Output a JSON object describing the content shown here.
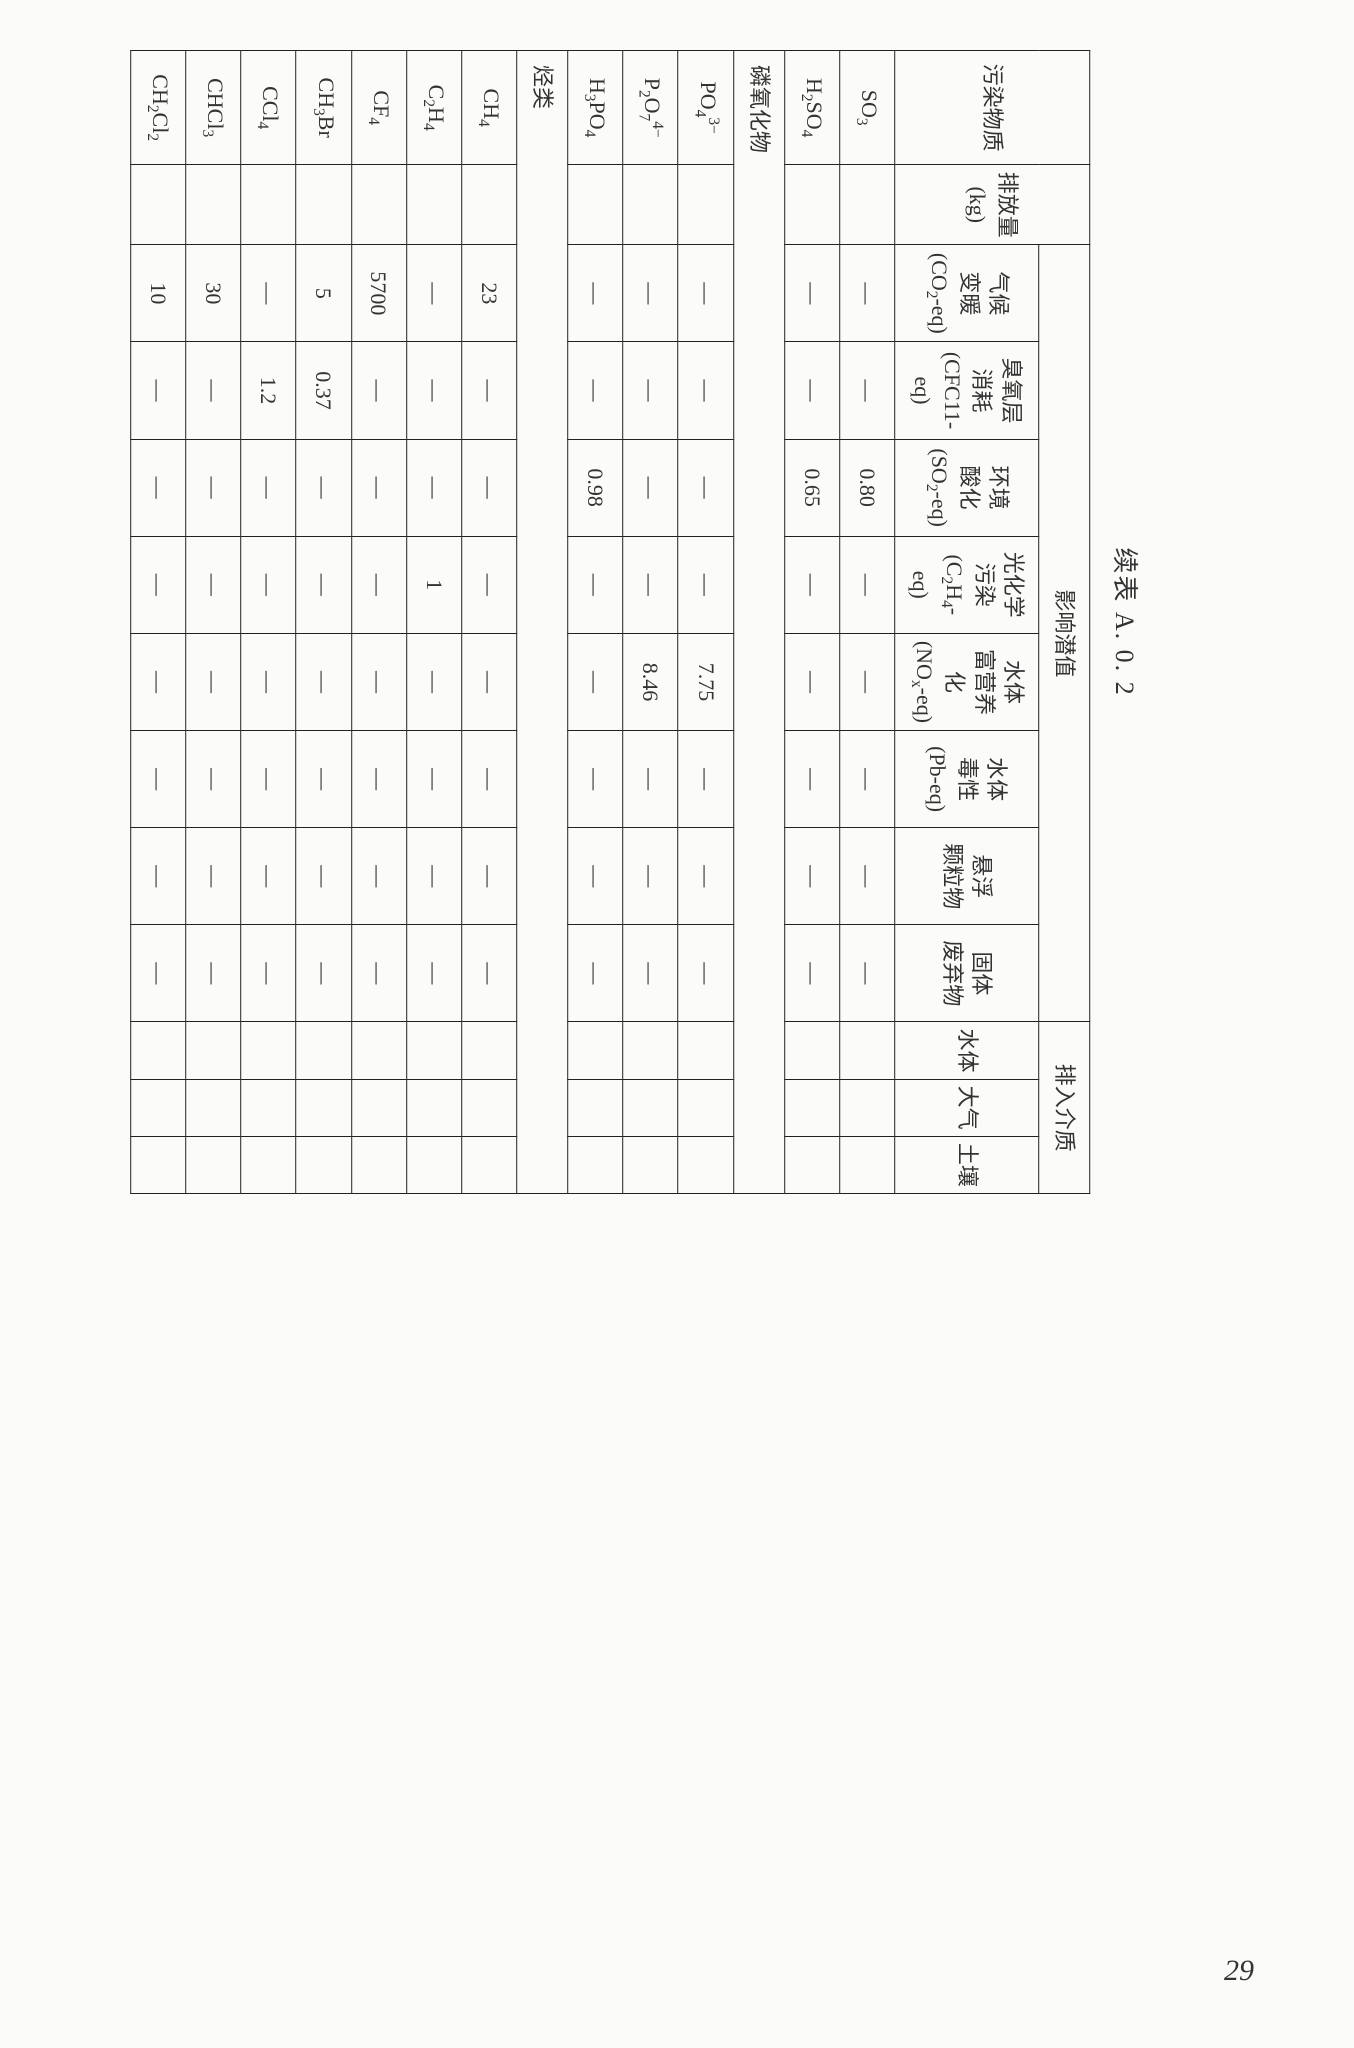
{
  "title": "续表 A. 0. 2",
  "page_number": "29",
  "headers": {
    "pollutant": "污染物质",
    "emission": "排放量",
    "emission_unit": "(kg)",
    "impact_group": "影响潜值",
    "media_group": "排入介质",
    "impact": [
      "气候\n变暖\n(CO₂-eq)",
      "臭氧层\n消耗\n(CFC11-eq)",
      "环境\n酸化\n(SO₂-eq)",
      "光化学\n污染\n(C₂H₄-eq)",
      "水体\n富营养化\n(NOₓ-eq)",
      "水体\n毒性\n(Pb-eq)",
      "悬浮\n颗粒物",
      "固体\n废弃物"
    ],
    "media": [
      "水体",
      "大气",
      "土壤"
    ]
  },
  "sections": [
    {
      "rows": [
        {
          "name": "SO₃",
          "emission": "",
          "cells": [
            "—",
            "—",
            "0.80",
            "—",
            "—",
            "—",
            "—",
            "—"
          ],
          "media": [
            "",
            "",
            ""
          ]
        },
        {
          "name": "H₂SO₄",
          "emission": "",
          "cells": [
            "—",
            "—",
            "0.65",
            "—",
            "—",
            "—",
            "—",
            "—"
          ],
          "media": [
            "",
            "",
            ""
          ]
        }
      ]
    },
    {
      "heading": "磷氧化物",
      "rows": [
        {
          "name": "PO₄³⁻",
          "emission": "",
          "cells": [
            "—",
            "—",
            "—",
            "—",
            "7.75",
            "—",
            "—",
            "—"
          ],
          "media": [
            "",
            "",
            ""
          ]
        },
        {
          "name": "P₂O₇⁴⁻",
          "emission": "",
          "cells": [
            "—",
            "—",
            "—",
            "—",
            "8.46",
            "—",
            "—",
            "—"
          ],
          "media": [
            "",
            "",
            ""
          ]
        },
        {
          "name": "H₃PO₄",
          "emission": "",
          "cells": [
            "—",
            "—",
            "0.98",
            "—",
            "—",
            "—",
            "—",
            "—"
          ],
          "media": [
            "",
            "",
            ""
          ]
        }
      ]
    },
    {
      "heading": "烃类",
      "rows": [
        {
          "name": "CH₄",
          "emission": "",
          "cells": [
            "23",
            "—",
            "—",
            "—",
            "—",
            "—",
            "—",
            "—"
          ],
          "media": [
            "",
            "",
            ""
          ]
        },
        {
          "name": "C₂H₄",
          "emission": "",
          "cells": [
            "—",
            "—",
            "—",
            "1",
            "—",
            "—",
            "—",
            "—"
          ],
          "media": [
            "",
            "",
            ""
          ]
        },
        {
          "name": "CF₄",
          "emission": "",
          "cells": [
            "5700",
            "—",
            "—",
            "—",
            "—",
            "—",
            "—",
            "—"
          ],
          "media": [
            "",
            "",
            ""
          ]
        },
        {
          "name": "CH₃Br",
          "emission": "",
          "cells": [
            "5",
            "0.37",
            "—",
            "—",
            "—",
            "—",
            "—",
            "—"
          ],
          "media": [
            "",
            "",
            ""
          ]
        },
        {
          "name": "CCl₄",
          "emission": "",
          "cells": [
            "—",
            "1.2",
            "—",
            "—",
            "—",
            "—",
            "—",
            "—"
          ],
          "media": [
            "",
            "",
            ""
          ]
        },
        {
          "name": "CHCl₃",
          "emission": "",
          "cells": [
            "30",
            "—",
            "—",
            "—",
            "—",
            "—",
            "—",
            "—"
          ],
          "media": [
            "",
            "",
            ""
          ]
        },
        {
          "name": "CH₂Cl₂",
          "emission": "",
          "cells": [
            "10",
            "—",
            "—",
            "—",
            "—",
            "—",
            "—",
            "—"
          ],
          "media": [
            "",
            "",
            ""
          ]
        }
      ]
    }
  ],
  "formula_map": {
    "SO₃": "SO<sub>3</sub>",
    "H₂SO₄": "H<sub>2</sub>SO<sub>4</sub>",
    "PO₄³⁻": "PO<sub>4</sub><sup>3−</sup>",
    "P₂O₇⁴⁻": "P<sub>2</sub>O<sub>7</sub><sup>4−</sup>",
    "H₃PO₄": "H<sub>3</sub>PO<sub>4</sub>",
    "CH₄": "CH<sub>4</sub>",
    "C₂H₄": "C<sub>2</sub>H<sub>4</sub>",
    "CF₄": "CF<sub>4</sub>",
    "CH₃Br": "CH<sub>3</sub>Br",
    "CCl₄": "CCl<sub>4</sub>",
    "CHCl₃": "CHCl<sub>3</sub>",
    "CH₂Cl₂": "CH<sub>2</sub>Cl<sub>2</sub>"
  },
  "impact_html": [
    "气候<br>变暖<br>(CO<sub>2</sub>-eq)",
    "臭氧层<br>消耗<br>(CFC11-eq)",
    "环境<br>酸化<br>(SO<sub>2</sub>-eq)",
    "光化学<br>污染<br>(C<sub>2</sub>H<sub>4</sub>-eq)",
    "水体<br>富营养化<br>(NO<sub>x</sub>-eq)",
    "水体<br>毒性<br>(Pb-eq)",
    "悬浮<br>颗粒物",
    "固体<br>废弃物"
  ]
}
